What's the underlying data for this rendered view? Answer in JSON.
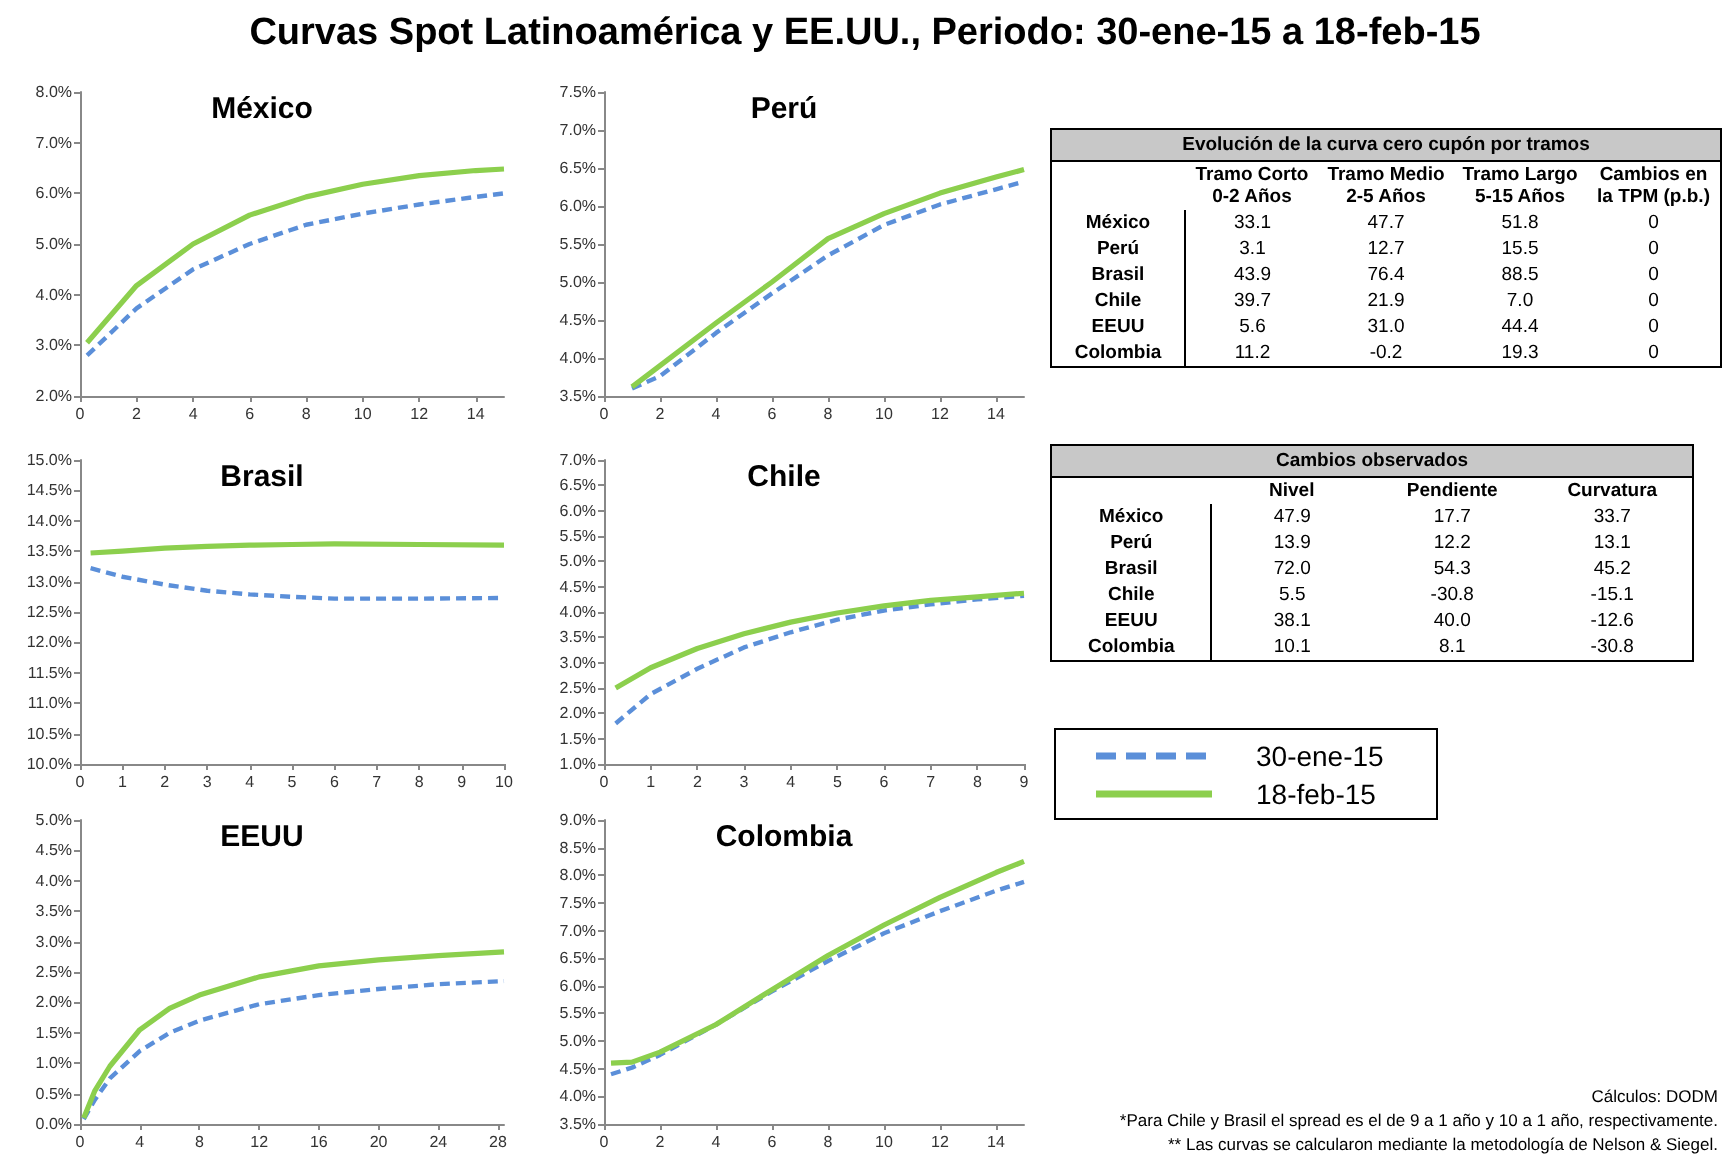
{
  "chart_data": [
    {
      "type": "other",
      "title": "Curvas Spot Latinoamérica y EE.UU., Periodo: 30-ene-15 a 18-feb-15",
      "annotations": [
        "Cálculos: DODM",
        "*Para Chile y Brasil el spread es el de 9 a 1 año y 10 a 1 año, respectivamente.",
        "** Las curvas se calcularon mediante la metodología de Nelson & Siegel."
      ]
    },
    {
      "type": "line",
      "title": "México",
      "legend": "right",
      "xlim": [
        0,
        15
      ],
      "xticks": [
        0,
        2,
        4,
        6,
        8,
        10,
        12,
        14
      ],
      "ylim": [
        2,
        8
      ],
      "yticks": [
        {
          "value": 2,
          "label": "2.0%"
        },
        {
          "value": 3,
          "label": "3.0%"
        },
        {
          "value": 4,
          "label": "4.0%"
        },
        {
          "value": 5,
          "label": "5.0%"
        },
        {
          "value": 6,
          "label": "6.0%"
        },
        {
          "value": 7,
          "label": "7.0%"
        },
        {
          "value": 8,
          "label": "8.0%"
        }
      ],
      "x": [
        0.25,
        2,
        4,
        6,
        8,
        10,
        12,
        14,
        15
      ],
      "series": [
        {
          "name": "30-ene-15",
          "color": "#5b8fd9",
          "line_style": "dashed",
          "values": [
            2.8,
            3.73,
            4.5,
            5.0,
            5.38,
            5.6,
            5.78,
            5.93,
            6.0
          ]
        },
        {
          "name": "18-feb-15",
          "color": "#8ccf4d",
          "line_style": "solid",
          "values": [
            3.05,
            4.18,
            5.0,
            5.57,
            5.93,
            6.18,
            6.35,
            6.45,
            6.48
          ]
        }
      ]
    },
    {
      "type": "line",
      "title": "Perú",
      "xlim": [
        0,
        15
      ],
      "xticks": [
        0,
        2,
        4,
        6,
        8,
        10,
        12,
        14
      ],
      "ylim": [
        3.5,
        7.5
      ],
      "yticks": [
        {
          "value": 3.5,
          "label": "3.5%"
        },
        {
          "value": 4,
          "label": "4.0%"
        },
        {
          "value": 4.5,
          "label": "4.5%"
        },
        {
          "value": 5,
          "label": "5.0%"
        },
        {
          "value": 5.5,
          "label": "5.5%"
        },
        {
          "value": 6,
          "label": "6.0%"
        },
        {
          "value": 6.5,
          "label": "6.5%"
        },
        {
          "value": 7,
          "label": "7.0%"
        },
        {
          "value": 7.5,
          "label": "7.5%"
        }
      ],
      "x": [
        1,
        2,
        4,
        6,
        8,
        10,
        12,
        14,
        15
      ],
      "series": [
        {
          "color": "#5b8fd9",
          "line_style": "dashed",
          "values": [
            3.6,
            3.76,
            4.33,
            4.85,
            5.35,
            5.75,
            6.02,
            6.22,
            6.32
          ]
        },
        {
          "color": "#8ccf4d",
          "line_style": "solid",
          "values": [
            3.62,
            3.9,
            4.46,
            5.0,
            5.57,
            5.9,
            6.17,
            6.38,
            6.48
          ]
        }
      ]
    },
    {
      "type": "heatmap",
      "title": "Evolución de la curva cero cupón por tramos",
      "categories": [
        "Tramo Corto 0-2 Años",
        "Tramo Medio 2-5 Años",
        "Tramo Largo 5-15 Años",
        "Cambios en la TPM (p.b.)"
      ],
      "y_categories": [
        "México",
        "Perú",
        "Brasil",
        "Chile",
        "EEUU",
        "Colombia"
      ],
      "cells": [
        [
          33.1,
          47.7,
          51.8,
          0
        ],
        [
          3.1,
          12.7,
          15.5,
          0
        ],
        [
          43.9,
          76.4,
          88.5,
          0
        ],
        [
          39.7,
          21.9,
          7.0,
          0
        ],
        [
          5.6,
          31.0,
          44.4,
          0
        ],
        [
          11.2,
          -0.2,
          19.3,
          0
        ]
      ],
      "cell_labels": [
        [
          "33.1",
          "47.7",
          "51.8",
          "0"
        ],
        [
          "3.1",
          "12.7",
          "15.5",
          "0"
        ],
        [
          "43.9",
          "76.4",
          "88.5",
          "0"
        ],
        [
          "39.7",
          "21.9",
          "7.0",
          "0"
        ],
        [
          "5.6",
          "31.0",
          "44.4",
          "0"
        ],
        [
          "11.2",
          "-0.2",
          "19.3",
          "0"
        ]
      ]
    },
    {
      "type": "line",
      "title": "Brasil",
      "xlim": [
        0,
        10
      ],
      "xticks": [
        0,
        1,
        2,
        3,
        4,
        5,
        6,
        7,
        8,
        9,
        10
      ],
      "ylim": [
        10,
        15
      ],
      "yticks": [
        {
          "value": 10,
          "label": "10.0%"
        },
        {
          "value": 10.5,
          "label": "10.5%"
        },
        {
          "value": 11,
          "label": "11.0%"
        },
        {
          "value": 11.5,
          "label": "11.5%"
        },
        {
          "value": 12,
          "label": "12.0%"
        },
        {
          "value": 12.5,
          "label": "12.5%"
        },
        {
          "value": 13,
          "label": "13.0%"
        },
        {
          "value": 13.5,
          "label": "13.5%"
        },
        {
          "value": 14,
          "label": "14.0%"
        },
        {
          "value": 14.5,
          "label": "14.5%"
        },
        {
          "value": 15,
          "label": "15.0%"
        }
      ],
      "x": [
        0.25,
        1,
        2,
        3,
        4,
        5,
        6,
        8,
        10
      ],
      "series": [
        {
          "color": "#5b8fd9",
          "line_style": "dashed",
          "values": [
            13.22,
            13.08,
            12.95,
            12.85,
            12.79,
            12.75,
            12.72,
            12.72,
            12.73
          ]
        },
        {
          "color": "#8ccf4d",
          "line_style": "solid",
          "values": [
            13.47,
            13.5,
            13.55,
            13.58,
            13.6,
            13.61,
            13.62,
            13.61,
            13.6
          ]
        }
      ]
    },
    {
      "type": "line",
      "title": "Chile",
      "xlim": [
        0,
        9
      ],
      "xticks": [
        0,
        1,
        2,
        3,
        4,
        5,
        6,
        7,
        8,
        9
      ],
      "ylim": [
        1,
        7
      ],
      "yticks": [
        {
          "value": 1,
          "label": "1.0%"
        },
        {
          "value": 1.5,
          "label": "1.5%"
        },
        {
          "value": 2,
          "label": "2.0%"
        },
        {
          "value": 2.5,
          "label": "2.5%"
        },
        {
          "value": 3,
          "label": "3.0%"
        },
        {
          "value": 3.5,
          "label": "3.5%"
        },
        {
          "value": 4,
          "label": "4.0%"
        },
        {
          "value": 4.5,
          "label": "4.5%"
        },
        {
          "value": 5,
          "label": "5.0%"
        },
        {
          "value": 5.5,
          "label": "5.5%"
        },
        {
          "value": 6,
          "label": "6.0%"
        },
        {
          "value": 6.5,
          "label": "6.5%"
        },
        {
          "value": 7,
          "label": "7.0%"
        }
      ],
      "x": [
        0.25,
        1,
        2,
        3,
        4,
        5,
        6,
        7,
        8,
        9
      ],
      "series": [
        {
          "color": "#5b8fd9",
          "line_style": "dashed",
          "values": [
            1.8,
            2.38,
            2.88,
            3.3,
            3.6,
            3.85,
            4.03,
            4.15,
            4.25,
            4.32
          ]
        },
        {
          "color": "#8ccf4d",
          "line_style": "solid",
          "values": [
            2.5,
            2.9,
            3.28,
            3.57,
            3.8,
            3.98,
            4.12,
            4.23,
            4.3,
            4.37
          ]
        }
      ]
    },
    {
      "type": "heatmap",
      "title": "Cambios observados",
      "categories": [
        "Nivel",
        "Pendiente",
        "Curvatura"
      ],
      "y_categories": [
        "México",
        "Perú",
        "Brasil",
        "Chile",
        "EEUU",
        "Colombia"
      ],
      "cells": [
        [
          47.9,
          17.7,
          33.7
        ],
        [
          13.9,
          12.2,
          13.1
        ],
        [
          72.0,
          54.3,
          45.2
        ],
        [
          5.5,
          -30.8,
          -15.1
        ],
        [
          38.1,
          40.0,
          -12.6
        ],
        [
          10.1,
          8.1,
          -30.8
        ]
      ],
      "cell_labels": [
        [
          "47.9",
          "17.7",
          "33.7"
        ],
        [
          "13.9",
          "12.2",
          "13.1"
        ],
        [
          "72.0",
          "54.3",
          "45.2"
        ],
        [
          "5.5",
          "-30.8",
          "-15.1"
        ],
        [
          "38.1",
          "40.0",
          "-12.6"
        ],
        [
          "10.1",
          "8.1",
          "-30.8"
        ]
      ]
    },
    {
      "type": "line",
      "title": "EEUU",
      "xlim": [
        0,
        28.4
      ],
      "xticks": [
        0,
        4,
        8,
        12,
        16,
        20,
        24,
        28
      ],
      "ylim": [
        0,
        5
      ],
      "yticks": [
        {
          "value": 0,
          "label": "0.0%"
        },
        {
          "value": 0.5,
          "label": "0.5%"
        },
        {
          "value": 1,
          "label": "1.0%"
        },
        {
          "value": 1.5,
          "label": "1.5%"
        },
        {
          "value": 2,
          "label": "2.0%"
        },
        {
          "value": 2.5,
          "label": "2.5%"
        },
        {
          "value": 3,
          "label": "3.0%"
        },
        {
          "value": 3.5,
          "label": "3.5%"
        },
        {
          "value": 4,
          "label": "4.0%"
        },
        {
          "value": 4.5,
          "label": "4.5%"
        },
        {
          "value": 5,
          "label": "5.0%"
        }
      ],
      "x": [
        0.25,
        1,
        2,
        4,
        6,
        8,
        12,
        16,
        20,
        24,
        28.4
      ],
      "series": [
        {
          "color": "#5b8fd9",
          "line_style": "dashed",
          "values": [
            0.08,
            0.4,
            0.75,
            1.2,
            1.5,
            1.7,
            1.97,
            2.12,
            2.22,
            2.3,
            2.35
          ]
        },
        {
          "color": "#8ccf4d",
          "line_style": "solid",
          "values": [
            0.1,
            0.55,
            0.95,
            1.55,
            1.9,
            2.12,
            2.42,
            2.6,
            2.7,
            2.77,
            2.83
          ]
        }
      ]
    },
    {
      "type": "line",
      "title": "Colombia",
      "xlim": [
        0,
        15
      ],
      "xticks": [
        0,
        2,
        4,
        6,
        8,
        10,
        12,
        14
      ],
      "ylim": [
        3.5,
        9
      ],
      "yticks": [
        {
          "value": 3.5,
          "label": "3.5%"
        },
        {
          "value": 4,
          "label": "4.0%"
        },
        {
          "value": 4.5,
          "label": "4.5%"
        },
        {
          "value": 5,
          "label": "5.0%"
        },
        {
          "value": 5.5,
          "label": "5.5%"
        },
        {
          "value": 6,
          "label": "6.0%"
        },
        {
          "value": 6.5,
          "label": "6.5%"
        },
        {
          "value": 7,
          "label": "7.0%"
        },
        {
          "value": 7.5,
          "label": "7.5%"
        },
        {
          "value": 8,
          "label": "8.0%"
        },
        {
          "value": 8.5,
          "label": "8.5%"
        },
        {
          "value": 9,
          "label": "9.0%"
        }
      ],
      "x": [
        0.25,
        1,
        2,
        4,
        6,
        8,
        10,
        12,
        14,
        15
      ],
      "series": [
        {
          "color": "#5b8fd9",
          "line_style": "dashed",
          "values": [
            4.4,
            4.52,
            4.75,
            5.3,
            5.9,
            6.45,
            6.95,
            7.35,
            7.72,
            7.88
          ]
        },
        {
          "color": "#8ccf4d",
          "line_style": "solid",
          "values": [
            4.6,
            4.62,
            4.8,
            5.3,
            5.93,
            6.55,
            7.1,
            7.6,
            8.05,
            8.25
          ]
        }
      ]
    }
  ]
}
